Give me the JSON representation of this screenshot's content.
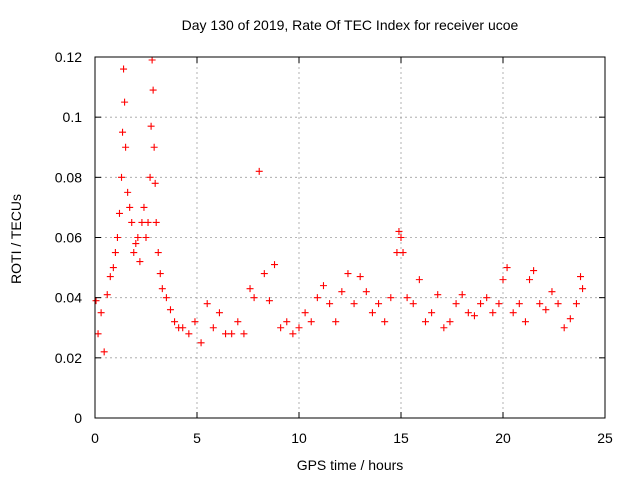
{
  "chart_data": {
    "type": "scatter",
    "title": "Day 130 of 2019, Rate Of TEC Index for receiver ucoe",
    "xlabel": "GPS time / hours",
    "ylabel": "ROTI / TECUs",
    "xlim": [
      0,
      25
    ],
    "ylim": [
      0,
      0.12
    ],
    "x_ticks": [
      0,
      5,
      10,
      15,
      20,
      25
    ],
    "x_tick_labels": [
      "0",
      "5",
      "10",
      "15",
      "20",
      "25"
    ],
    "y_ticks": [
      0,
      0.02,
      0.04,
      0.06,
      0.08,
      0.1,
      0.12
    ],
    "y_tick_labels": [
      "0",
      "0.02",
      "0.04",
      "0.06",
      "0.08",
      "0.1",
      "0.12"
    ],
    "grid": true,
    "marker": "+",
    "color": "#ff0000",
    "legend": "none",
    "series": [
      {
        "x": [
          0.05,
          0.15,
          0.3,
          0.45,
          0.6,
          0.75,
          0.9,
          1.0,
          1.1,
          1.2,
          1.3,
          1.35,
          1.4,
          1.45,
          1.5,
          1.6,
          1.7,
          1.8,
          1.9,
          2.0,
          2.1,
          2.2,
          2.3,
          2.4,
          2.5,
          2.6,
          2.7,
          2.75,
          2.8,
          2.85,
          2.9,
          2.95,
          3.0,
          3.1,
          3.2,
          3.3,
          3.5,
          3.7,
          3.9,
          4.1,
          4.3,
          4.6,
          4.9,
          5.2,
          5.5,
          5.8,
          6.1,
          6.4,
          6.7,
          7.0,
          7.3,
          7.6,
          7.8,
          8.05,
          8.3,
          8.55,
          8.8,
          9.1,
          9.4,
          9.7,
          10.0,
          10.3,
          10.6,
          10.9,
          11.2,
          11.5,
          11.8,
          12.1,
          12.4,
          12.7,
          13.0,
          13.3,
          13.6,
          13.9,
          14.2,
          14.5,
          14.8,
          14.9,
          15.0,
          15.1,
          15.3,
          15.6,
          15.9,
          16.2,
          16.5,
          16.8,
          17.1,
          17.4,
          17.7,
          18.0,
          18.3,
          18.6,
          18.9,
          19.2,
          19.5,
          19.8,
          20.0,
          20.2,
          20.5,
          20.8,
          21.1,
          21.3,
          21.5,
          21.8,
          22.1,
          22.4,
          22.7,
          23.0,
          23.3,
          23.6,
          23.8,
          23.9
        ],
        "y": [
          0.039,
          0.028,
          0.035,
          0.022,
          0.041,
          0.047,
          0.05,
          0.055,
          0.06,
          0.068,
          0.08,
          0.095,
          0.116,
          0.105,
          0.09,
          0.075,
          0.07,
          0.065,
          0.055,
          0.058,
          0.06,
          0.052,
          0.065,
          0.07,
          0.06,
          0.065,
          0.08,
          0.097,
          0.119,
          0.109,
          0.09,
          0.078,
          0.065,
          0.055,
          0.048,
          0.043,
          0.04,
          0.036,
          0.032,
          0.03,
          0.03,
          0.028,
          0.032,
          0.025,
          0.038,
          0.03,
          0.035,
          0.028,
          0.028,
          0.032,
          0.028,
          0.043,
          0.04,
          0.082,
          0.048,
          0.039,
          0.051,
          0.03,
          0.032,
          0.028,
          0.03,
          0.035,
          0.032,
          0.04,
          0.044,
          0.038,
          0.032,
          0.042,
          0.048,
          0.038,
          0.047,
          0.042,
          0.035,
          0.038,
          0.032,
          0.04,
          0.055,
          0.062,
          0.06,
          0.055,
          0.04,
          0.038,
          0.046,
          0.032,
          0.035,
          0.041,
          0.03,
          0.032,
          0.038,
          0.041,
          0.035,
          0.034,
          0.038,
          0.04,
          0.035,
          0.038,
          0.046,
          0.05,
          0.035,
          0.038,
          0.032,
          0.046,
          0.049,
          0.038,
          0.036,
          0.042,
          0.038,
          0.03,
          0.033,
          0.038,
          0.047,
          0.043
        ]
      }
    ]
  }
}
